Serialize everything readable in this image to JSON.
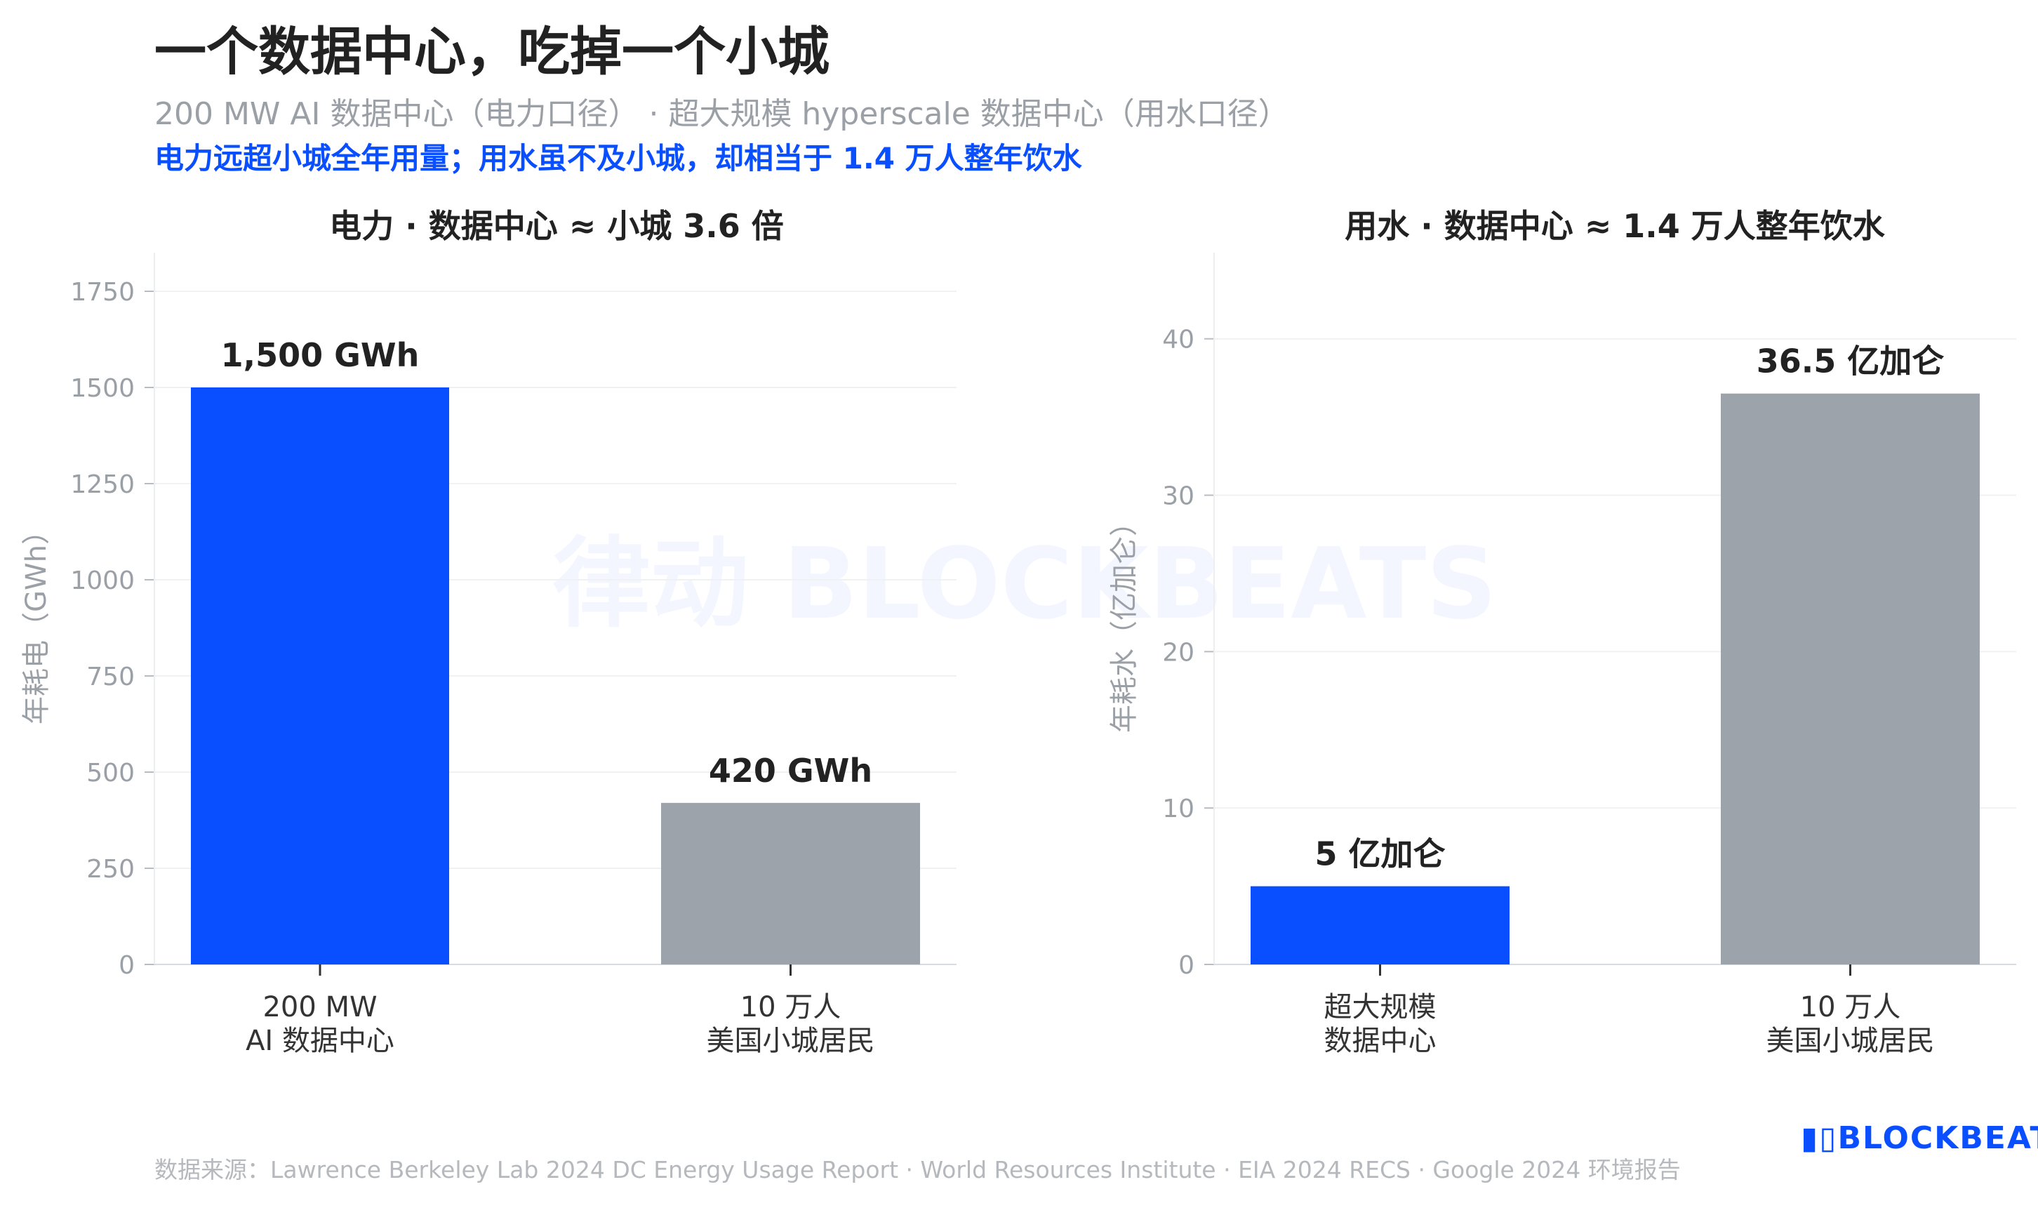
{
  "title": "一个数据中心，吃掉一个小城",
  "subtitle": "200 MW AI 数据中心（电力口径） · 超大规模 hyperscale 数据中心（用水口径）",
  "highlight": "电力远超小城全年用量；用水虽不及小城，却相当于 1.4 万人整年饮水",
  "footer": "数据来源：Lawrence Berkeley Lab 2024 DC Energy Usage Report · World Resources Institute · EIA 2024 RECS · Google 2024 环境报告",
  "logo": "BLOCKBEATS",
  "watermark": "律动 BLOCKBEATS",
  "colors": {
    "data_center": "#0a4fff",
    "town": "#9ca3ab",
    "title": "#222222",
    "accent": "#0a4fff"
  },
  "chart_data": [
    {
      "type": "bar",
      "title": "电力 · 数据中心 ≈ 小城 3.6 倍",
      "ylabel": "年耗电（GWh）",
      "ylim": [
        0,
        1750
      ],
      "yticks": [
        0,
        250,
        500,
        750,
        1000,
        1250,
        1500,
        1750
      ],
      "grid": true,
      "categories": [
        [
          "200 MW",
          "AI 数据中心"
        ],
        [
          "10 万人",
          "美国小城居民"
        ]
      ],
      "values": [
        1500,
        420
      ],
      "data_labels": [
        "1,500 GWh",
        "420 GWh"
      ],
      "bar_colors": [
        "#0a4fff",
        "#9ca3ab"
      ]
    },
    {
      "type": "bar",
      "title": "用水 · 数据中心 ≈ 1.4 万人整年饮水",
      "ylabel": "年耗水（亿加仑）",
      "ylim": [
        0,
        46
      ],
      "yticks": [
        0,
        10,
        20,
        30,
        40
      ],
      "grid": true,
      "categories": [
        [
          "超大规模",
          "数据中心"
        ],
        [
          "10 万人",
          "美国小城居民"
        ]
      ],
      "values": [
        5,
        36.5
      ],
      "data_labels": [
        "5 亿加仑",
        "36.5 亿加仑"
      ],
      "bar_colors": [
        "#0a4fff",
        "#9ca3ab"
      ]
    }
  ]
}
